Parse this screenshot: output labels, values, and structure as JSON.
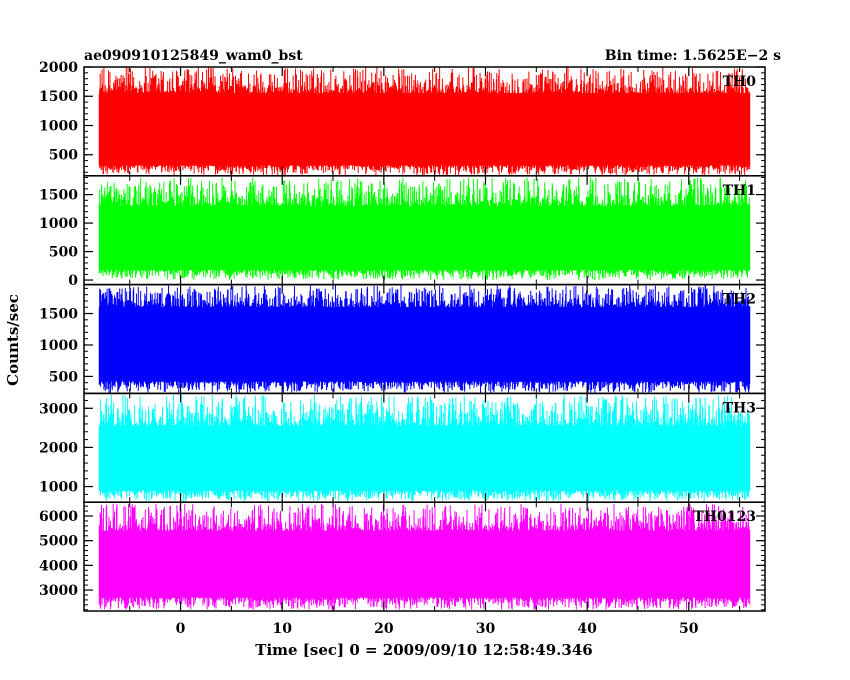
{
  "header": {
    "source": "ae090910125849_wam0_bst",
    "bin_time": "Bin time: 1.5625E−2 s"
  },
  "chart_data": {
    "type": "line",
    "title": "",
    "xlabel": "Time [sec] 0 = 2009/09/10 12:58:49.346",
    "ylabel": "Counts/sec",
    "xlim": [
      -9.5,
      57.5
    ],
    "x_ticks": [
      0,
      10,
      20,
      30,
      40,
      50
    ],
    "x_range_data": [
      -8,
      56
    ],
    "grid": false,
    "panels": [
      {
        "name": "TH0",
        "color": "#ff0000",
        "ylim": [
          140,
          2000
        ],
        "yticks": [
          500,
          1000,
          1500,
          2000
        ],
        "band": {
          "low": 320,
          "high": 1550,
          "min": 150,
          "max": 2000
        }
      },
      {
        "name": "TH1",
        "color": "#00ff00",
        "ylim": [
          -80,
          1830
        ],
        "yticks": [
          0,
          500,
          1000,
          1500
        ],
        "band": {
          "low": 180,
          "high": 1300,
          "min": 0,
          "max": 1800
        }
      },
      {
        "name": "TH2",
        "color": "#0000ff",
        "ylim": [
          230,
          1960
        ],
        "yticks": [
          500,
          1000,
          1500
        ],
        "band": {
          "low": 420,
          "high": 1600,
          "min": 240,
          "max": 1950
        }
      },
      {
        "name": "TH3",
        "color": "#00ffff",
        "ylim": [
          600,
          3380
        ],
        "yticks": [
          1000,
          2000,
          3000
        ],
        "band": {
          "low": 900,
          "high": 2550,
          "min": 620,
          "max": 3350
        }
      },
      {
        "name": "TH0123",
        "color": "#ff00ff",
        "ylim": [
          2150,
          6560
        ],
        "yticks": [
          3000,
          4000,
          5000,
          6000
        ],
        "band": {
          "low": 2700,
          "high": 5400,
          "min": 2200,
          "max": 6500
        }
      }
    ]
  }
}
